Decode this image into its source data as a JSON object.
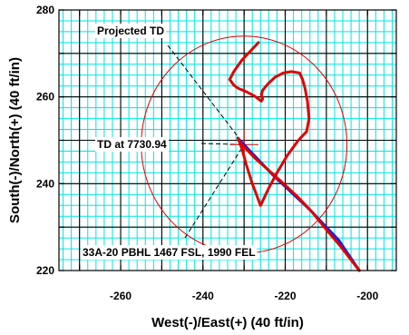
{
  "chart_data": {
    "type": "line",
    "xlabel": "West(-)/East(+) (40 ft/in)",
    "ylabel": "South(-)/North(+) (40 ft/in)",
    "xlim": [
      -275,
      -193
    ],
    "ylim": [
      220,
      280
    ],
    "xticks": [
      -260,
      -240,
      -220,
      -200
    ],
    "yticks": [
      220,
      240,
      260,
      280
    ],
    "grid": true,
    "colors": {
      "grid": "#00e5e5",
      "major_grid": "#000000",
      "actual": "#e00000",
      "plan": "#2020d0",
      "circle": "#e00000"
    },
    "series": [
      {
        "role": "plan",
        "x": [
          -231.5,
          -223,
          -214,
          -207,
          -202
        ],
        "y": [
          250.5,
          242,
          234,
          227,
          220
        ]
      },
      {
        "role": "actual",
        "x": [
          -202,
          -206.5,
          -210.5,
          -213.5,
          -217,
          -221,
          -224.5,
          -227.5,
          -229.5,
          -231,
          -231.5,
          -230.5,
          -229.5,
          -228,
          -226,
          -224,
          -222,
          -219.5,
          -216.8,
          -214.8,
          -214.2,
          -214.6,
          -215.2,
          -215.8,
          -216.5,
          -218.5,
          -220.5,
          -222.5,
          -224.2,
          -225.5,
          -225.8,
          -225.5,
          -225.8,
          -226.5,
          -227.5,
          -229.5,
          -231.5,
          -232.5,
          -233.5,
          -232.5,
          -230.5,
          -226.5
        ],
        "y": [
          220,
          225.5,
          230,
          233.5,
          237,
          240.5,
          243.5,
          246,
          248,
          249.5,
          250.5,
          248,
          244.5,
          240,
          235,
          239,
          242.5,
          246.5,
          250,
          252,
          255,
          259,
          262,
          264,
          265.5,
          265.8,
          265.5,
          264.5,
          263,
          261.5,
          260.5,
          259.5,
          259,
          259.5,
          260.2,
          261.2,
          262,
          262.7,
          264,
          265.8,
          268.5,
          272.5
        ]
      }
    ],
    "circle": {
      "center": [
        -230,
        249
      ],
      "radius": 25
    },
    "crosshair": {
      "x": -230,
      "y": 249
    },
    "annotations": [
      {
        "text": "Projected TD"
      },
      {
        "text": "TD at 7730.94"
      },
      {
        "text": "33A-20 PBHL 1467 FSL, 1990 FEL"
      }
    ]
  }
}
